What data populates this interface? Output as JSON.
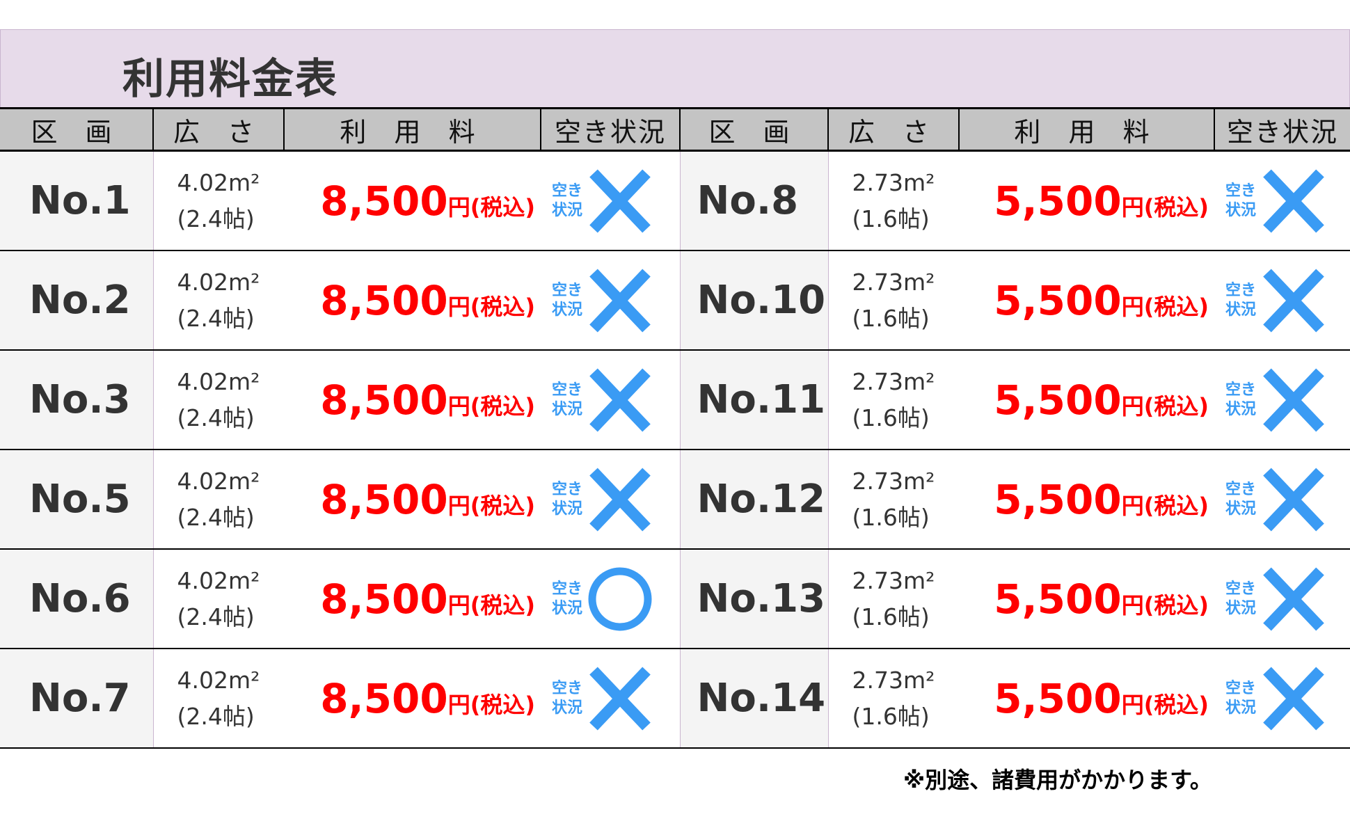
{
  "title": "利用料金表",
  "headers": [
    "区 画",
    "広 さ",
    "利 用 料",
    "空き状況",
    "区 画",
    "広 さ",
    "利 用 料",
    "空き状況"
  ],
  "status_label": "空き\n状況",
  "status_label_lines": [
    "空き",
    "状況"
  ],
  "status_color": "#3a9bf4",
  "price_color": "#ff0000",
  "left": [
    {
      "no": "No.1",
      "area": "4.02m²",
      "tatami": "(2.4帖)",
      "price": "8,500",
      "unit": "円(税込)",
      "status": "unavailable"
    },
    {
      "no": "No.2",
      "area": "4.02m²",
      "tatami": "(2.4帖)",
      "price": "8,500",
      "unit": "円(税込)",
      "status": "unavailable"
    },
    {
      "no": "No.3",
      "area": "4.02m²",
      "tatami": "(2.4帖)",
      "price": "8,500",
      "unit": "円(税込)",
      "status": "unavailable"
    },
    {
      "no": "No.5",
      "area": "4.02m²",
      "tatami": "(2.4帖)",
      "price": "8,500",
      "unit": "円(税込)",
      "status": "unavailable"
    },
    {
      "no": "No.6",
      "area": "4.02m²",
      "tatami": "(2.4帖)",
      "price": "8,500",
      "unit": "円(税込)",
      "status": "available"
    },
    {
      "no": "No.7",
      "area": "4.02m²",
      "tatami": "(2.4帖)",
      "price": "8,500",
      "unit": "円(税込)",
      "status": "unavailable"
    }
  ],
  "right": [
    {
      "no": "No.8",
      "area": "2.73m²",
      "tatami": "(1.6帖)",
      "price": "5,500",
      "unit": "円(税込)",
      "status": "unavailable"
    },
    {
      "no": "No.10",
      "area": "2.73m²",
      "tatami": "(1.6帖)",
      "price": "5,500",
      "unit": "円(税込)",
      "status": "unavailable"
    },
    {
      "no": "No.11",
      "area": "2.73m²",
      "tatami": "(1.6帖)",
      "price": "5,500",
      "unit": "円(税込)",
      "status": "unavailable"
    },
    {
      "no": "No.12",
      "area": "2.73m²",
      "tatami": "(1.6帖)",
      "price": "5,500",
      "unit": "円(税込)",
      "status": "unavailable"
    },
    {
      "no": "No.13",
      "area": "2.73m²",
      "tatami": "(1.6帖)",
      "price": "5,500",
      "unit": "円(税込)",
      "status": "unavailable"
    },
    {
      "no": "No.14",
      "area": "2.73m²",
      "tatami": "(1.6帖)",
      "price": "5,500",
      "unit": "円(税込)",
      "status": "unavailable"
    }
  ],
  "note": "※別途、諸費用がかかります。"
}
